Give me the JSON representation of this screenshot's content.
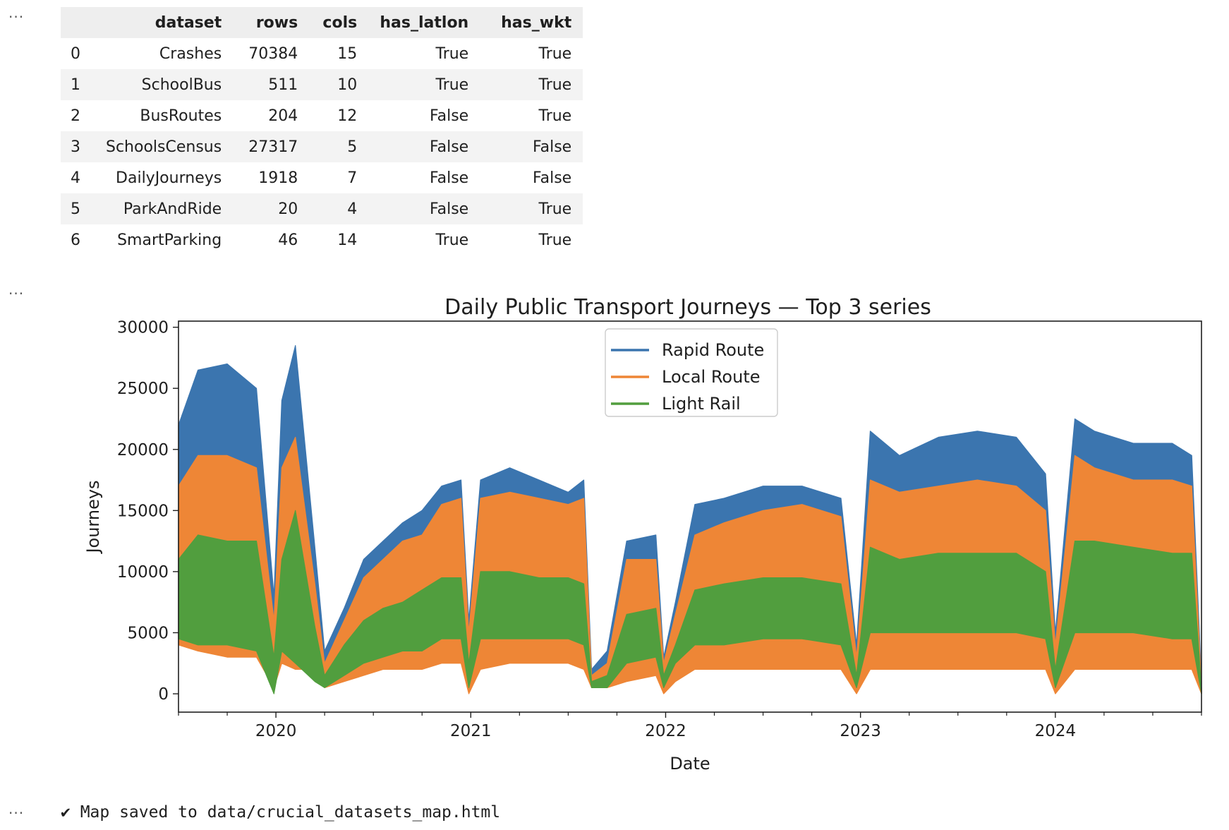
{
  "cells": {
    "table_gutter": "···",
    "chart_gutter": "···",
    "text_gutter": "···"
  },
  "table": {
    "columns": [
      "",
      "dataset",
      "rows",
      "cols",
      "has_latlon",
      "has_wkt"
    ],
    "rows": [
      [
        "0",
        "Crashes",
        "70384",
        "15",
        "True",
        "True"
      ],
      [
        "1",
        "SchoolBus",
        "511",
        "10",
        "True",
        "True"
      ],
      [
        "2",
        "BusRoutes",
        "204",
        "12",
        "False",
        "True"
      ],
      [
        "3",
        "SchoolsCensus",
        "27317",
        "5",
        "False",
        "False"
      ],
      [
        "4",
        "DailyJourneys",
        "1918",
        "7",
        "False",
        "False"
      ],
      [
        "5",
        "ParkAndRide",
        "20",
        "4",
        "False",
        "True"
      ],
      [
        "6",
        "SmartParking",
        "46",
        "14",
        "True",
        "True"
      ]
    ]
  },
  "chart_data": {
    "type": "line",
    "title": "Daily Public Transport Journeys — Top 3 series",
    "xlabel": "Date",
    "ylabel": "Journeys",
    "xlim": [
      2019.5,
      2024.75
    ],
    "ylim": [
      -1500,
      30500
    ],
    "x_ticks": [
      {
        "value": 2020,
        "label": "2020"
      },
      {
        "value": 2021,
        "label": "2021"
      },
      {
        "value": 2022,
        "label": "2022"
      },
      {
        "value": 2023,
        "label": "2023"
      },
      {
        "value": 2024,
        "label": "2024"
      }
    ],
    "y_ticks": [
      {
        "value": 0,
        "label": "0"
      },
      {
        "value": 5000,
        "label": "5000"
      },
      {
        "value": 10000,
        "label": "10000"
      },
      {
        "value": 15000,
        "label": "15000"
      },
      {
        "value": 20000,
        "label": "20000"
      },
      {
        "value": 25000,
        "label": "25000"
      },
      {
        "value": 30000,
        "label": "30000"
      }
    ],
    "legend_position": "upper center",
    "grid": false,
    "x": [
      2019.5,
      2019.6,
      2019.75,
      2019.9,
      2019.99,
      2020.03,
      2020.1,
      2020.2,
      2020.25,
      2020.35,
      2020.45,
      2020.55,
      2020.65,
      2020.75,
      2020.85,
      2020.95,
      2020.99,
      2021.05,
      2021.2,
      2021.35,
      2021.5,
      2021.58,
      2021.62,
      2021.7,
      2021.8,
      2021.95,
      2021.99,
      2022.05,
      2022.15,
      2022.3,
      2022.5,
      2022.7,
      2022.9,
      2022.98,
      2023.05,
      2023.2,
      2023.4,
      2023.6,
      2023.8,
      2023.95,
      2024.0,
      2024.1,
      2024.2,
      2024.4,
      2024.6,
      2024.7,
      2024.75
    ],
    "series": [
      {
        "name": "Rapid Route",
        "color": "#3b75af",
        "high": [
          22000,
          26500,
          27000,
          25000,
          8000,
          24000,
          28500,
          12000,
          3500,
          7000,
          11000,
          12500,
          14000,
          15000,
          17000,
          17500,
          6000,
          17500,
          18500,
          17500,
          16500,
          17500,
          2000,
          3500,
          12500,
          13000,
          3000,
          7500,
          15500,
          16000,
          17000,
          17000,
          16000,
          4000,
          21500,
          19500,
          21000,
          21500,
          21000,
          18000,
          5000,
          22500,
          21500,
          20500,
          20500,
          19500,
          1000
        ],
        "low": [
          5000,
          4500,
          4500,
          4000,
          1000,
          3500,
          3000,
          2500,
          1000,
          1500,
          2000,
          2500,
          3000,
          3000,
          3000,
          3000,
          500,
          3000,
          3000,
          3000,
          3000,
          2500,
          1000,
          1000,
          1500,
          2000,
          500,
          2000,
          2500,
          3000,
          3000,
          3000,
          3000,
          500,
          3000,
          3000,
          3000,
          3000,
          3000,
          3000,
          500,
          3000,
          3000,
          3000,
          3000,
          3000,
          0
        ]
      },
      {
        "name": "Local Route",
        "color": "#ee8636",
        "high": [
          17000,
          19500,
          19500,
          18500,
          6000,
          18500,
          21000,
          9000,
          2500,
          6000,
          9500,
          11000,
          12500,
          13000,
          15500,
          16000,
          5000,
          16000,
          16500,
          16000,
          15500,
          16000,
          1500,
          2500,
          11000,
          11000,
          2500,
          6500,
          13000,
          14000,
          15000,
          15500,
          14500,
          3000,
          17500,
          16500,
          17000,
          17500,
          17000,
          15000,
          4000,
          19500,
          18500,
          17500,
          17500,
          17000,
          500
        ],
        "low": [
          4000,
          3500,
          3000,
          3000,
          500,
          2500,
          2000,
          2000,
          500,
          1000,
          1500,
          2000,
          2000,
          2000,
          2500,
          2500,
          0,
          2000,
          2500,
          2500,
          2500,
          2000,
          500,
          500,
          1000,
          1500,
          0,
          1000,
          2000,
          2000,
          2000,
          2000,
          2000,
          0,
          2000,
          2000,
          2000,
          2000,
          2000,
          2000,
          0,
          2000,
          2000,
          2000,
          2000,
          2000,
          0
        ]
      },
      {
        "name": "Light Rail",
        "color": "#519e3e",
        "high": [
          11000,
          13000,
          12500,
          12500,
          3000,
          11000,
          15000,
          5500,
          1500,
          4000,
          6000,
          7000,
          7500,
          8500,
          9500,
          9500,
          2500,
          10000,
          10000,
          9500,
          9500,
          9000,
          1000,
          1500,
          6500,
          7000,
          1500,
          4000,
          8500,
          9000,
          9500,
          9500,
          9000,
          1500,
          12000,
          11000,
          11500,
          11500,
          11500,
          10000,
          2000,
          12500,
          12500,
          12000,
          11500,
          11500,
          500
        ],
        "low": [
          4500,
          4000,
          4000,
          3500,
          0,
          3500,
          2500,
          1000,
          500,
          1500,
          2500,
          3000,
          3500,
          3500,
          4500,
          4500,
          500,
          4500,
          4500,
          4500,
          4500,
          4000,
          500,
          500,
          2500,
          3000,
          500,
          2500,
          4000,
          4000,
          4500,
          4500,
          4000,
          500,
          5000,
          5000,
          5000,
          5000,
          5000,
          4500,
          500,
          5000,
          5000,
          5000,
          4500,
          4500,
          0
        ]
      }
    ]
  },
  "output_message": "✔ Map saved to data/crucial_datasets_map.html"
}
